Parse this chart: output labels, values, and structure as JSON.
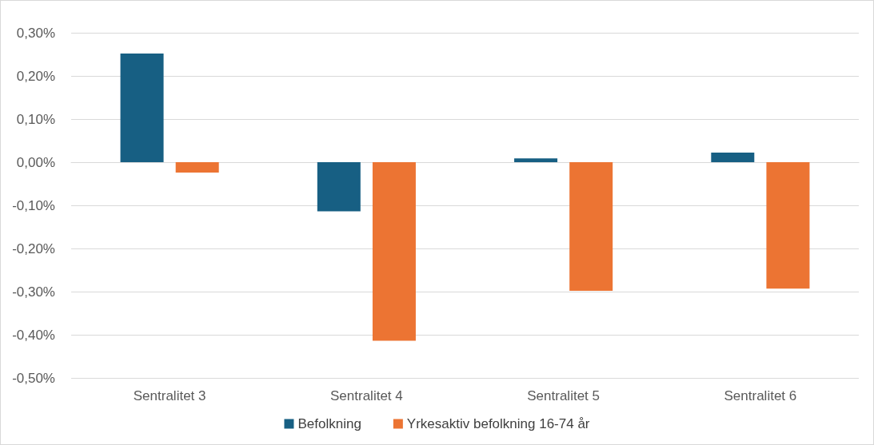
{
  "chart_data": {
    "type": "bar",
    "categories": [
      "Sentralitet 3",
      "Sentralitet 4",
      "Sentralitet 5",
      "Sentralitet 6"
    ],
    "series": [
      {
        "name": "Befolkning",
        "color": "#175f83",
        "values": [
          0.252,
          -0.114,
          0.009,
          0.022
        ]
      },
      {
        "name": "Yrkesaktiv befolkning 16-74 år",
        "color": "#ec7433",
        "values": [
          -0.024,
          -0.414,
          -0.298,
          -0.293
        ]
      }
    ],
    "ylim": [
      -0.5,
      0.3
    ],
    "yticks": [
      {
        "value": -0.5,
        "label": "-0,50%"
      },
      {
        "value": -0.4,
        "label": "-0,40%"
      },
      {
        "value": -0.3,
        "label": "-0,30%"
      },
      {
        "value": -0.2,
        "label": "-0,20%"
      },
      {
        "value": -0.1,
        "label": "-0,10%"
      },
      {
        "value": 0,
        "label": "0,00%"
      },
      {
        "value": 0.1,
        "label": "0,10%"
      },
      {
        "value": 0.2,
        "label": "0,20%"
      },
      {
        "value": 0.3,
        "label": "0,30%"
      }
    ],
    "grid": "y",
    "legend": "bottom"
  }
}
